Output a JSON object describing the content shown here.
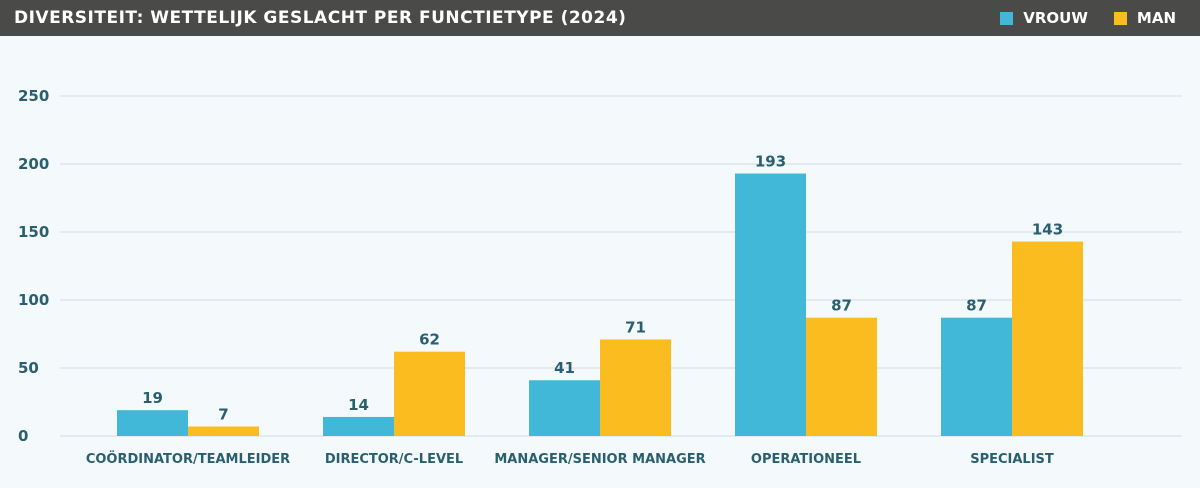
{
  "colors": {
    "vrouw": "#42b8d8",
    "man": "#fbbc1f",
    "header_bg": "#4a4a48",
    "text": "#2a5f70",
    "grid": "#d3dde3"
  },
  "chart_data": {
    "type": "bar",
    "title": "DIVERSITEIT: WETTELIJK GESLACHT PER FUNCTIETYPE (2024)",
    "categories": [
      "COÖRDINATOR/TEAMLEIDER",
      "DIRECTOR/C-LEVEL",
      "MANAGER/SENIOR MANAGER",
      "OPERATIONEEL",
      "SPECIALIST"
    ],
    "series": [
      {
        "name": "VROUW",
        "values": [
          19,
          14,
          41,
          193,
          87
        ]
      },
      {
        "name": "MAN",
        "values": [
          7,
          62,
          71,
          87,
          143
        ]
      }
    ],
    "ylim": [
      0,
      250
    ],
    "yticks": [
      0,
      50,
      100,
      150,
      200,
      250
    ],
    "grid": true,
    "legend": "top-right"
  }
}
